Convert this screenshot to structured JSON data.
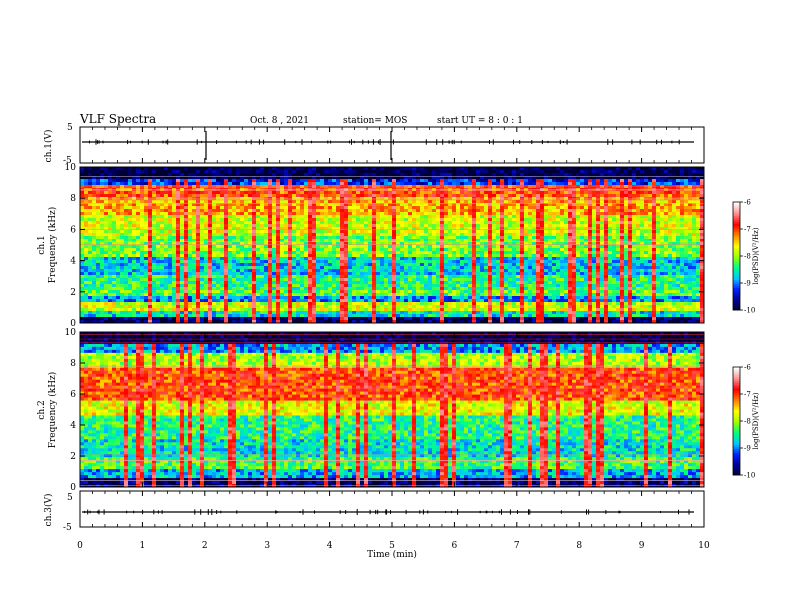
{
  "header": {
    "title": "VLF Spectra",
    "date": "Oct. 8 , 2021",
    "station": "station= MOS",
    "start": "start UT =  8 : 0 : 1"
  },
  "chart_data": [
    {
      "type": "line",
      "title": "",
      "ylabel": "ch.1(V)",
      "ylim": [
        -5,
        5
      ],
      "yticks": [
        "5",
        "-5"
      ],
      "xlim": [
        0,
        10
      ],
      "description_values": {
        "baseline": 0
      }
    },
    {
      "type": "heatmap",
      "ylabel": "ch.1\nFrequency (kHz)",
      "ylabel_top": "ch.1",
      "ylabel_bottom": "Frequency (kHz)",
      "ylim": [
        0,
        10
      ],
      "yticks": [
        "0",
        "2",
        "4",
        "6",
        "8",
        "10"
      ],
      "xlim": [
        0,
        10
      ],
      "colorbar": {
        "label": "log(PSD)(V²/Hz)",
        "range": [
          -10,
          -6
        ],
        "ticks": [
          "-6",
          "-7",
          "-8",
          "-9",
          "-10"
        ]
      },
      "bands_khz": [
        {
          "from": 0.0,
          "to": 0.4,
          "level": -9.8
        },
        {
          "from": 0.4,
          "to": 0.8,
          "level": -8.6
        },
        {
          "from": 0.8,
          "to": 1.4,
          "level": -7.8
        },
        {
          "from": 1.4,
          "to": 1.8,
          "level": -8.9
        },
        {
          "from": 1.8,
          "to": 2.2,
          "level": -8.2
        },
        {
          "from": 2.2,
          "to": 3.0,
          "level": -8.4
        },
        {
          "from": 3.0,
          "to": 4.2,
          "level": -8.7
        },
        {
          "from": 4.2,
          "to": 5.6,
          "level": -8.1
        },
        {
          "from": 5.6,
          "to": 7.0,
          "level": -7.8
        },
        {
          "from": 7.0,
          "to": 8.0,
          "level": -7.4
        },
        {
          "from": 8.0,
          "to": 8.8,
          "level": -7.0
        },
        {
          "from": 8.8,
          "to": 9.3,
          "level": -9.2
        },
        {
          "from": 9.3,
          "to": 10.0,
          "level": -9.9
        }
      ]
    },
    {
      "type": "heatmap",
      "ylabel_top": "ch.2",
      "ylabel_bottom": "Frequency (kHz)",
      "ylim": [
        0,
        10
      ],
      "yticks": [
        "0",
        "2",
        "4",
        "6",
        "8",
        "10"
      ],
      "xlim": [
        0,
        10
      ],
      "colorbar": {
        "label": "log(PSD)(V²/Hz)",
        "range": [
          -10,
          -6
        ],
        "ticks": [
          "-6",
          "-7",
          "-8",
          "-9",
          "-10"
        ]
      },
      "bands_khz": [
        {
          "from": 0.0,
          "to": 0.6,
          "level": -9.8
        },
        {
          "from": 0.6,
          "to": 1.2,
          "level": -8.8
        },
        {
          "from": 1.2,
          "to": 2.0,
          "level": -8.3
        },
        {
          "from": 2.0,
          "to": 3.0,
          "level": -8.6
        },
        {
          "from": 3.0,
          "to": 4.6,
          "level": -8.4
        },
        {
          "from": 4.6,
          "to": 5.6,
          "level": -7.7
        },
        {
          "from": 5.6,
          "to": 7.6,
          "level": -7.0
        },
        {
          "from": 7.6,
          "to": 8.6,
          "level": -7.9
        },
        {
          "from": 8.6,
          "to": 9.3,
          "level": -8.9
        },
        {
          "from": 9.3,
          "to": 10.0,
          "level": -9.9
        }
      ]
    },
    {
      "type": "line",
      "ylabel": "ch.3(V)",
      "ylim": [
        -5,
        5
      ],
      "yticks": [
        "5",
        "-5"
      ],
      "xlim": [
        0,
        10
      ],
      "description_values": {
        "baseline": 0
      }
    }
  ],
  "xaxis": {
    "label": "Time (min)",
    "ticks": [
      "0",
      "1",
      "2",
      "3",
      "4",
      "5",
      "6",
      "7",
      "8",
      "9",
      "10"
    ]
  },
  "colors": {
    "cmap": [
      "#000033",
      "#000090",
      "#0020ff",
      "#00c8ff",
      "#00ff80",
      "#a0ff00",
      "#ffff00",
      "#ff8000",
      "#ff0000",
      "#ff9090",
      "#ffffff"
    ]
  }
}
